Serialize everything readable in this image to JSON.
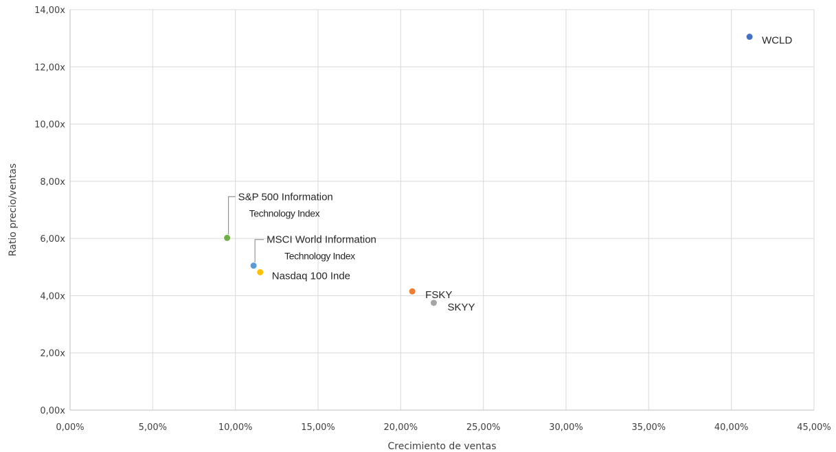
{
  "chart_data": {
    "type": "scatter",
    "title": "",
    "xlabel": "Crecimiento de ventas",
    "ylabel": "Ratio precio/ventas",
    "xlim": [
      0,
      45
    ],
    "ylim": [
      0,
      14
    ],
    "x_ticks": [
      0,
      5,
      10,
      15,
      20,
      25,
      30,
      35,
      40,
      45
    ],
    "y_ticks": [
      0,
      2,
      4,
      6,
      8,
      10,
      12,
      14
    ],
    "x_tick_labels": [
      "0,00%",
      "5,00%",
      "10,00%",
      "15,00%",
      "20,00%",
      "25,00%",
      "30,00%",
      "35,00%",
      "40,00%",
      "45,00%"
    ],
    "y_tick_labels": [
      "0,00x",
      "2,00x",
      "4,00x",
      "6,00x",
      "8,00x",
      "10,00x",
      "12,00x",
      "14,00x"
    ],
    "grid": true,
    "legend": "none",
    "points": [
      {
        "label_lines": [
          "WCLD"
        ],
        "x": 41.1,
        "y": 13.05,
        "color": "#4472C4"
      },
      {
        "label_lines": [
          "S&P 500 Information",
          "Technology Index"
        ],
        "x": 9.5,
        "y": 6.02,
        "color": "#70AD47",
        "leader": true
      },
      {
        "label_lines": [
          "MSCI World Information",
          "Technology Index"
        ],
        "x": 11.1,
        "y": 5.05,
        "color": "#5B9BD5",
        "leader": true
      },
      {
        "label_lines": [
          "Nasdaq 100 Inde"
        ],
        "x": 11.5,
        "y": 4.82,
        "color": "#FFC000"
      },
      {
        "label_lines": [
          "FSKY"
        ],
        "x": 20.7,
        "y": 4.15,
        "color": "#ED7D31"
      },
      {
        "label_lines": [
          "SKYY"
        ],
        "x": 22.0,
        "y": 3.75,
        "color": "#A5A5A5"
      }
    ]
  }
}
